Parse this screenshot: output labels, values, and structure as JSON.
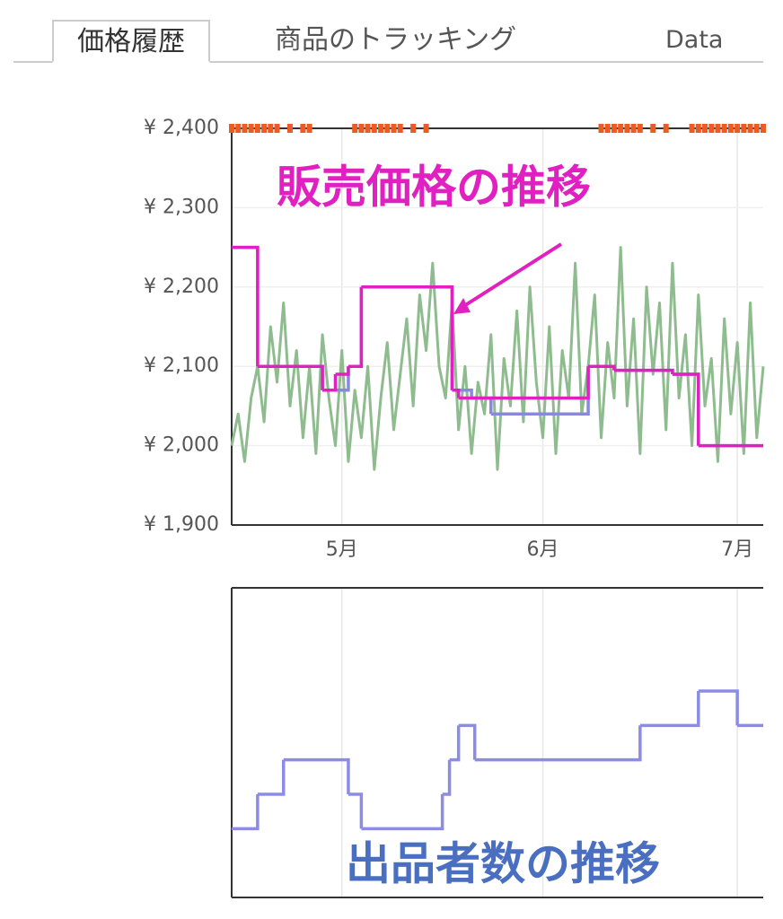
{
  "tabs": [
    "価格履歴",
    "商品のトラッキング",
    "Data"
  ],
  "chart_data": [
    {
      "type": "line",
      "annotation": "販売価格の推移",
      "xlim": [
        0,
        82
      ],
      "xticks": [
        {
          "value": 17,
          "label": "5月"
        },
        {
          "value": 48,
          "label": "6月"
        },
        {
          "value": 78,
          "label": "7月"
        }
      ],
      "ylim": [
        1900,
        2400
      ],
      "yticks": [
        {
          "value": 1900,
          "label": "¥ 1,900"
        },
        {
          "value": 2000,
          "label": "¥ 2,000"
        },
        {
          "value": 2100,
          "label": "¥ 2,100"
        },
        {
          "value": 2200,
          "label": "¥ 2,200"
        },
        {
          "value": 2300,
          "label": "¥ 2,300"
        },
        {
          "value": 2400,
          "label": "¥ 2,400"
        }
      ],
      "grid": true,
      "series": [
        {
          "color": "#ee5a24",
          "style": "ticks",
          "x": [
            0,
            1,
            2,
            3,
            4,
            5,
            6,
            7,
            9,
            11,
            12,
            19,
            20,
            21,
            22,
            23,
            24,
            25,
            26,
            28,
            30,
            57,
            58,
            59,
            60,
            61,
            62,
            63,
            65,
            67,
            71,
            72,
            73,
            74,
            75,
            76,
            77,
            78,
            79,
            80,
            81,
            82
          ],
          "values": [
            2400,
            2400,
            2400,
            2400,
            2400,
            2400,
            2400,
            2400,
            2400,
            2400,
            2400,
            2400,
            2400,
            2400,
            2400,
            2400,
            2400,
            2400,
            2400,
            2400,
            2400,
            2400,
            2400,
            2400,
            2400,
            2400,
            2400,
            2400,
            2400,
            2400,
            2400,
            2400,
            2400,
            2400,
            2400,
            2400,
            2400,
            2400,
            2400,
            2400,
            2400,
            2400
          ]
        },
        {
          "color": "#8fbc8f",
          "style": "line",
          "x": [
            0,
            1,
            2,
            3,
            4,
            5,
            6,
            7,
            8,
            9,
            10,
            11,
            12,
            13,
            14,
            15,
            16,
            17,
            18,
            19,
            20,
            21,
            22,
            23,
            24,
            25,
            26,
            27,
            28,
            29,
            30,
            31,
            32,
            33,
            34,
            35,
            36,
            37,
            38,
            39,
            40,
            41,
            42,
            43,
            44,
            45,
            46,
            47,
            48,
            49,
            50,
            51,
            52,
            53,
            54,
            55,
            56,
            57,
            58,
            59,
            60,
            61,
            62,
            63,
            64,
            65,
            66,
            67,
            68,
            69,
            70,
            71,
            72,
            73,
            74,
            75,
            76,
            77,
            78,
            79,
            80,
            81,
            82
          ],
          "values": [
            2000,
            2040,
            1980,
            2060,
            2100,
            2030,
            2150,
            2080,
            2180,
            2050,
            2120,
            2010,
            2100,
            1990,
            2140,
            2060,
            2000,
            2120,
            1980,
            2070,
            2010,
            2100,
            1970,
            2060,
            2130,
            2020,
            2090,
            2160,
            2050,
            2190,
            2120,
            2230,
            2100,
            2060,
            2180,
            2020,
            2100,
            1990,
            2080,
            2040,
            2140,
            1970,
            2110,
            2050,
            2170,
            2030,
            2200,
            2080,
            2010,
            2150,
            1990,
            2120,
            2060,
            2230,
            2040,
            2100,
            2190,
            2010,
            2130,
            2060,
            2250,
            2050,
            2160,
            1990,
            2200,
            2090,
            2180,
            2020,
            2230,
            2060,
            2140,
            2000,
            2190,
            2050,
            2110,
            1980,
            2160,
            2040,
            2130,
            1990,
            2180,
            2010,
            2100
          ]
        },
        {
          "color": "#8888dd",
          "style": "step",
          "x": [
            0,
            4,
            14,
            18,
            20,
            34,
            37,
            40,
            55,
            59,
            68,
            72,
            82
          ],
          "values": [
            2250,
            2100,
            2070,
            2100,
            2200,
            2070,
            2060,
            2040,
            2100,
            2095,
            2090,
            2000,
            2000
          ]
        },
        {
          "color": "#e020c0",
          "style": "step",
          "x": [
            0,
            4,
            14,
            16,
            18,
            20,
            34,
            35,
            55,
            59,
            68,
            72,
            82
          ],
          "values": [
            2250,
            2100,
            2070,
            2090,
            2100,
            2200,
            2070,
            2060,
            2100,
            2095,
            2090,
            2000,
            2000
          ]
        }
      ]
    },
    {
      "type": "line",
      "annotation": "出品者数の推移",
      "xlim": [
        0,
        82
      ],
      "ylim": [
        0,
        9
      ],
      "grid": true,
      "series": [
        {
          "color": "#8c8ce6",
          "style": "step",
          "x": [
            0,
            4,
            8,
            18,
            20,
            32.5,
            33.6,
            35,
            37.5,
            63,
            72,
            78,
            82
          ],
          "values": [
            2,
            3,
            4,
            3,
            2,
            3,
            4,
            5,
            4,
            5,
            6,
            5,
            5
          ]
        }
      ]
    }
  ]
}
